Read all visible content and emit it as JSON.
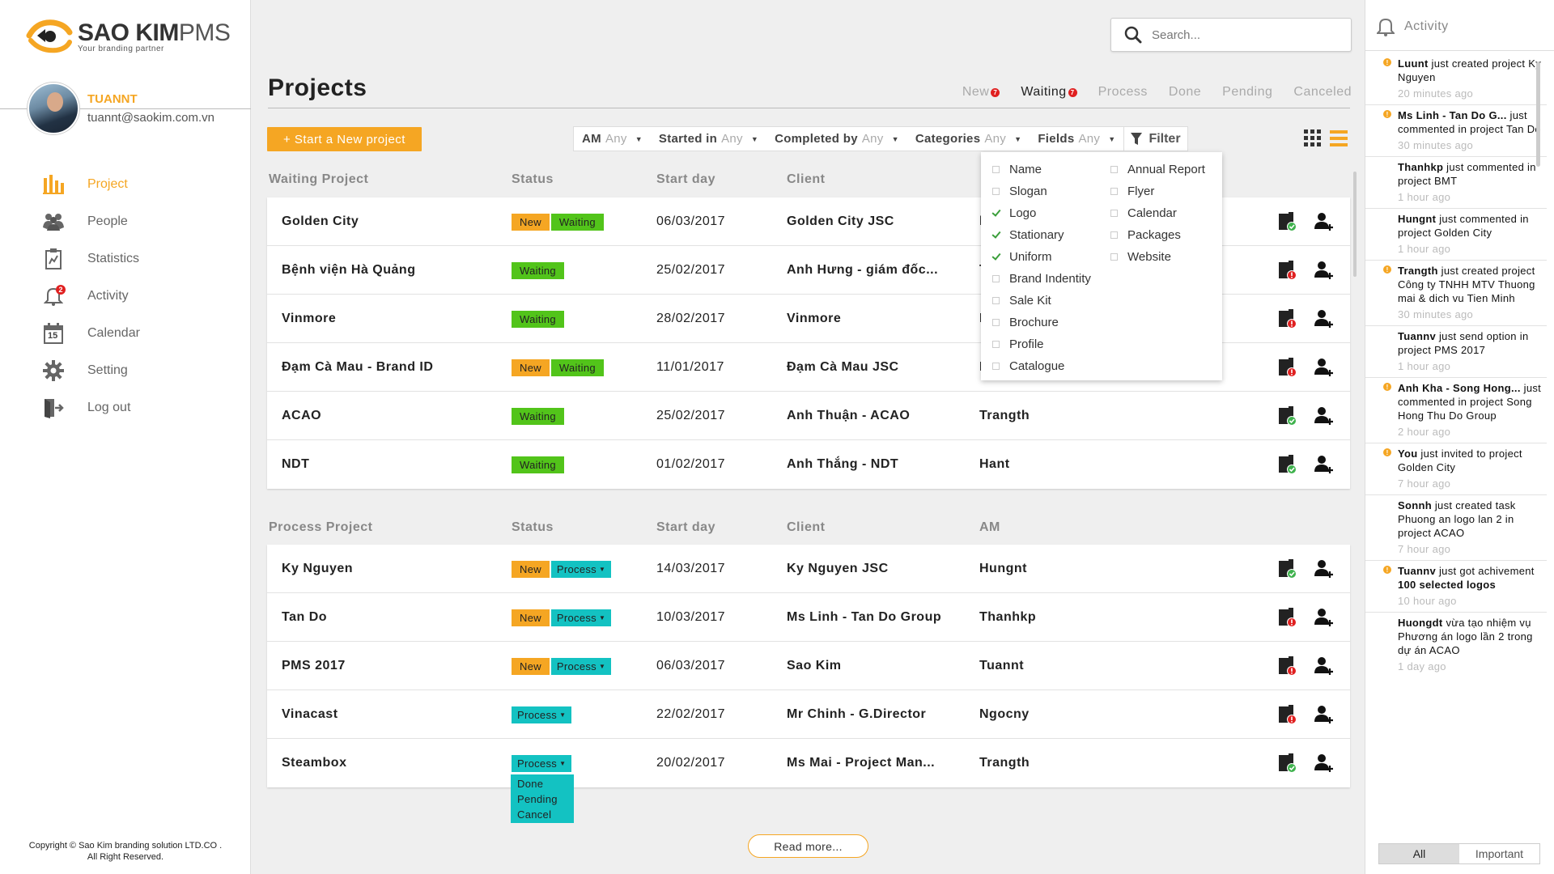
{
  "brand": {
    "name": "SAO KIM",
    "suffix": "PMS",
    "tagline": "Your branding partner",
    "accent": "#f5a623"
  },
  "user": {
    "name": "TUANNT",
    "email": "tuannt@saokim.com.vn"
  },
  "nav": [
    {
      "label": "Project",
      "icon": "bar-chart-icon",
      "active": true
    },
    {
      "label": "People",
      "icon": "people-icon"
    },
    {
      "label": "Statistics",
      "icon": "clipboard-chart-icon"
    },
    {
      "label": "Activity",
      "icon": "bell-icon",
      "badge": "2"
    },
    {
      "label": "Calendar",
      "icon": "calendar-icon",
      "day": "15"
    },
    {
      "label": "Setting",
      "icon": "gear-icon"
    },
    {
      "label": "Log out",
      "icon": "logout-icon"
    }
  ],
  "copyright": {
    "line1": "Copyright © Sao Kim branding solution LTD.CO .",
    "line2": "All Right Reserved."
  },
  "search": {
    "placeholder": "Search..."
  },
  "page_title": "Projects",
  "tabs": [
    {
      "label": "New",
      "badge": "7"
    },
    {
      "label": "Waiting",
      "badge": "7",
      "active": true
    },
    {
      "label": "Process"
    },
    {
      "label": "Done"
    },
    {
      "label": "Pending"
    },
    {
      "label": "Canceled"
    }
  ],
  "new_project_label": "+ Start a New project",
  "filters": [
    {
      "label": "AM",
      "value": "Any"
    },
    {
      "label": "Started in",
      "value": "Any"
    },
    {
      "label": "Completed by",
      "value": "Any"
    },
    {
      "label": "Categories",
      "value": "Any"
    },
    {
      "label": "Fields",
      "value": "Any"
    }
  ],
  "filter_button": "Filter",
  "categories": {
    "col1": [
      {
        "label": "Name",
        "checked": false
      },
      {
        "label": "Slogan",
        "checked": false
      },
      {
        "label": "Logo",
        "checked": true
      },
      {
        "label": "Stationary",
        "checked": true
      },
      {
        "label": "Uniform",
        "checked": true
      },
      {
        "label": "Brand Indentity",
        "checked": false
      },
      {
        "label": "Sale Kit",
        "checked": false
      },
      {
        "label": "Brochure",
        "checked": false
      },
      {
        "label": "Profile",
        "checked": false
      },
      {
        "label": "Catalogue",
        "checked": false
      }
    ],
    "col2": [
      {
        "label": "Annual Report",
        "checked": false
      },
      {
        "label": "Flyer",
        "checked": false
      },
      {
        "label": "Calendar",
        "checked": false
      },
      {
        "label": "Packages",
        "checked": false
      },
      {
        "label": "Website",
        "checked": false
      }
    ]
  },
  "waiting": {
    "headers": {
      "name": "Waiting Project",
      "status": "Status",
      "start": "Start day",
      "client": "Client"
    },
    "rows": [
      {
        "name": "Golden City",
        "badges": [
          "New",
          "Waiting"
        ],
        "date": "06/03/2017",
        "client": "Golden City JSC",
        "am": "l",
        "doc": "ok"
      },
      {
        "name": "Bệnh viện Hà Quảng",
        "badges": [
          "Waiting"
        ],
        "date": "25/02/2017",
        "client": "Anh Hưng - giám đốc...",
        "am": "T",
        "doc": "alert"
      },
      {
        "name": "Vinmore",
        "badges": [
          "Waiting"
        ],
        "date": "28/02/2017",
        "client": "Vinmore",
        "am": "I",
        "doc": "alert"
      },
      {
        "name": "Đạm Cà Mau - Brand ID",
        "badges": [
          "New",
          "Waiting"
        ],
        "date": "11/01/2017",
        "client": "Đạm Cà Mau JSC",
        "am": "I",
        "doc": "alert"
      },
      {
        "name": "ACAO",
        "badges": [
          "Waiting"
        ],
        "date": "25/02/2017",
        "client": "Anh Thuận - ACAO",
        "am": "Trangth",
        "doc": "ok"
      },
      {
        "name": "NDT",
        "badges": [
          "Waiting"
        ],
        "date": "01/02/2017",
        "client": "Anh Thắng - NDT",
        "am": "Hant",
        "doc": "ok"
      }
    ]
  },
  "process": {
    "headers": {
      "name": "Process Project",
      "status": "Status",
      "start": "Start day",
      "client": "Client",
      "am": "AM"
    },
    "rows": [
      {
        "name": "Ky Nguyen",
        "badges": [
          "New",
          "Process"
        ],
        "date": "14/03/2017",
        "client": "Ky Nguyen JSC",
        "am": "Hungnt",
        "doc": "ok"
      },
      {
        "name": "Tan Do",
        "badges": [
          "New",
          "Process"
        ],
        "date": "10/03/2017",
        "client": "Ms Linh - Tan Do Group",
        "am": "Thanhkp",
        "doc": "alert"
      },
      {
        "name": "PMS 2017",
        "badges": [
          "New",
          "Process"
        ],
        "date": "06/03/2017",
        "client": "Sao Kim",
        "am": "Tuannt",
        "doc": "alert"
      },
      {
        "name": "Vinacast",
        "badges": [
          "Process"
        ],
        "date": "22/02/2017",
        "client": "Mr Chinh - G.Director",
        "am": "Ngocny",
        "doc": "alert"
      },
      {
        "name": "Steambox",
        "badges": [
          "Process"
        ],
        "date": "20/02/2017",
        "client": "Ms Mai - Project Man...",
        "am": "Trangth",
        "doc": "ok"
      }
    ]
  },
  "process_menu": [
    "Done",
    "Pending",
    "Cancel"
  ],
  "read_more": "Read more...",
  "activity": {
    "title": "Activity",
    "items": [
      {
        "important": true,
        "actor": "Luunt",
        "text": " just created project Ky Nguyen",
        "time": "20 minutes ago"
      },
      {
        "important": true,
        "actor": "Ms Linh - Tan Do G...",
        "text": " just commented in project Tan Do",
        "time": "30 minutes ago"
      },
      {
        "important": false,
        "actor": "Thanhkp",
        "text": " just commented in project BMT",
        "time": "1 hour ago"
      },
      {
        "important": false,
        "actor": "Hungnt",
        "text": " just commented in project Golden City",
        "time": "1 hour ago"
      },
      {
        "important": true,
        "actor": "Trangth",
        "text": " just created project Công ty TNHH MTV Thuong mai & dich vu Tien Minh",
        "time": "30 minutes ago"
      },
      {
        "important": false,
        "actor": "Tuannv",
        "text": " just send option in project PMS 2017",
        "time": "1 hour ago"
      },
      {
        "important": true,
        "actor": "Anh Kha - Song Hong...",
        "text": " just commented in project Song Hong Thu Do Group",
        "time": "2 hour ago"
      },
      {
        "important": true,
        "actor": "You",
        "text": " just invited to project Golden City",
        "time": "7 hour ago"
      },
      {
        "important": false,
        "actor": "Sonnh",
        "text": " just created task Phuong an logo lan 2 in project ACAO",
        "time": "7 hour ago"
      },
      {
        "important": true,
        "actor": "Tuannv",
        "text": " just got achivement ",
        "strong": "100 selected logos",
        "time": "10 hour ago"
      },
      {
        "important": false,
        "actor": "Huongdt",
        "text": " vừa tạo nhiệm vụ Phương án logo lần 2 trong dự án ACAO",
        "time": "1 day ago"
      }
    ],
    "tabs": [
      "All",
      "Important"
    ]
  }
}
